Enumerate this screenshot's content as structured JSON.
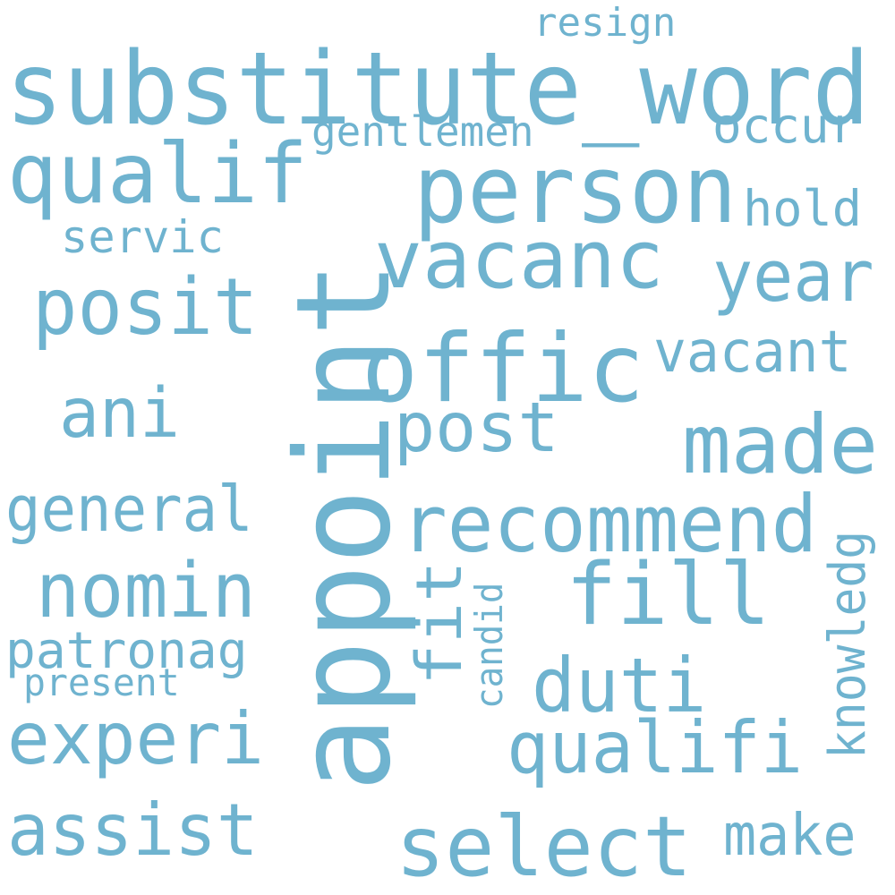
{
  "colors": {
    "background": "#ffffff",
    "word": "#6fb3cf"
  },
  "words": [
    {
      "text": "substitute_word",
      "orientation": "horizontal"
    },
    {
      "text": "appoint",
      "orientation": "vertical"
    },
    {
      "text": "person",
      "orientation": "horizontal"
    },
    {
      "text": "offic",
      "orientation": "horizontal"
    },
    {
      "text": "qualif",
      "orientation": "horizontal"
    },
    {
      "text": "vacanc",
      "orientation": "horizontal"
    },
    {
      "text": "fill",
      "orientation": "horizontal"
    },
    {
      "text": "made",
      "orientation": "horizontal"
    },
    {
      "text": "recommend",
      "orientation": "horizontal"
    },
    {
      "text": "select",
      "orientation": "horizontal"
    },
    {
      "text": "qualifi",
      "orientation": "horizontal"
    },
    {
      "text": "posit",
      "orientation": "horizontal"
    },
    {
      "text": "year",
      "orientation": "horizontal"
    },
    {
      "text": "duti",
      "orientation": "horizontal"
    },
    {
      "text": "nomin",
      "orientation": "horizontal"
    },
    {
      "text": "assist",
      "orientation": "horizontal"
    },
    {
      "text": "experi",
      "orientation": "horizontal"
    },
    {
      "text": "post",
      "orientation": "horizontal"
    },
    {
      "text": "ani",
      "orientation": "horizontal"
    },
    {
      "text": "vacant",
      "orientation": "horizontal"
    },
    {
      "text": "general",
      "orientation": "horizontal"
    },
    {
      "text": "make",
      "orientation": "horizontal"
    },
    {
      "text": "fit",
      "orientation": "vertical"
    },
    {
      "text": "patronag",
      "orientation": "horizontal"
    },
    {
      "text": "hold",
      "orientation": "horizontal"
    },
    {
      "text": "occur",
      "orientation": "horizontal"
    },
    {
      "text": "servic",
      "orientation": "horizontal"
    },
    {
      "text": "knowledg",
      "orientation": "vertical"
    },
    {
      "text": "gentlemen",
      "orientation": "horizontal"
    },
    {
      "text": "resign",
      "orientation": "horizontal"
    },
    {
      "text": "present",
      "orientation": "horizontal"
    },
    {
      "text": "candid",
      "orientation": "vertical"
    }
  ]
}
